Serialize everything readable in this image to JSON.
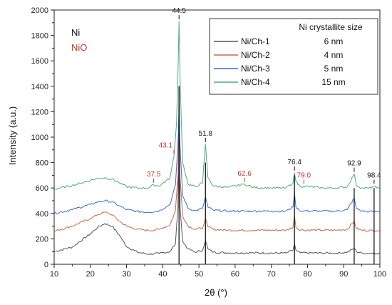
{
  "chart_data": {
    "type": "line",
    "xlabel": "2θ (°)",
    "ylabel": "Intensity (a.u.)",
    "xlim": [
      10,
      100
    ],
    "ylim": [
      0,
      2000
    ],
    "x_ticks": [
      10,
      20,
      30,
      40,
      50,
      60,
      70,
      80,
      90,
      100
    ],
    "y_ticks": [
      0,
      200,
      400,
      600,
      800,
      1000,
      1200,
      1400,
      1600,
      1800,
      2000
    ],
    "grid": false,
    "phase_labels": [
      {
        "text": "Ni",
        "color": "#111111"
      },
      {
        "text": "NiO",
        "color": "#c0392b"
      }
    ],
    "legend": {
      "placement": "top-right",
      "header": "Ni crystallite size",
      "entries": [
        {
          "name": "Ni/Ch-1",
          "value": "6 nm",
          "color": "#555555"
        },
        {
          "name": "Ni/Ch-2",
          "value": "4 nm",
          "color": "#d0654f"
        },
        {
          "name": "Ni/Ch-3",
          "value": "5 nm",
          "color": "#3a6fd8"
        },
        {
          "name": "Ni/Ch-4",
          "value": "15 nm",
          "color": "#4caf74"
        }
      ]
    },
    "series": [
      {
        "name": "Ni/Ch-1",
        "color": "#555555",
        "x": [
          10,
          15,
          20,
          22,
          24,
          26,
          28,
          30,
          33,
          36,
          39,
          42,
          43.5,
          44.2,
          44.5,
          44.8,
          45.5,
          47,
          49,
          51,
          51.8,
          52.5,
          54,
          58,
          65,
          70,
          74,
          76,
          76.4,
          76.8,
          78,
          84,
          88,
          91,
          92.9,
          93.5,
          95,
          97,
          98.4,
          99,
          100
        ],
        "y": [
          100,
          135,
          240,
          290,
          320,
          300,
          230,
          140,
          95,
          80,
          85,
          100,
          160,
          450,
          1400,
          450,
          180,
          120,
          95,
          110,
          185,
          120,
          95,
          90,
          90,
          88,
          88,
          110,
          160,
          110,
          90,
          88,
          88,
          95,
          125,
          100,
          88,
          86,
          90,
          85,
          85
        ]
      },
      {
        "name": "Ni/Ch-2",
        "color": "#d0654f",
        "x": [
          10,
          15,
          20,
          22,
          24,
          26,
          28,
          30,
          33,
          36,
          39,
          42,
          43.5,
          44.2,
          44.5,
          44.8,
          45.5,
          47,
          49,
          51,
          51.8,
          52.5,
          54,
          58,
          65,
          70,
          74,
          76,
          76.4,
          76.8,
          78,
          84,
          88,
          91,
          92.9,
          93.5,
          95,
          97,
          99,
          100
        ],
        "y": [
          260,
          300,
          360,
          390,
          410,
          390,
          340,
          300,
          275,
          265,
          275,
          310,
          420,
          700,
          1080,
          680,
          380,
          300,
          275,
          285,
          360,
          295,
          275,
          268,
          268,
          268,
          268,
          290,
          380,
          290,
          270,
          268,
          268,
          275,
          340,
          282,
          268,
          265,
          265,
          265
        ]
      },
      {
        "name": "Ni/Ch-3",
        "color": "#3a6fd8",
        "x": [
          10,
          15,
          20,
          22,
          24,
          26,
          28,
          30,
          33,
          36,
          39,
          42,
          43.5,
          44.2,
          44.5,
          44.8,
          45.5,
          47,
          49,
          51,
          51.8,
          52.5,
          54,
          58,
          65,
          70,
          74,
          76,
          76.4,
          76.8,
          78,
          84,
          88,
          91,
          92.9,
          93.5,
          95,
          97,
          99,
          100
        ],
        "y": [
          400,
          430,
          470,
          490,
          500,
          490,
          460,
          430,
          415,
          410,
          420,
          470,
          620,
          950,
          1210,
          920,
          540,
          440,
          420,
          440,
          530,
          450,
          425,
          418,
          418,
          418,
          418,
          450,
          560,
          450,
          420,
          418,
          418,
          430,
          520,
          440,
          418,
          415,
          415,
          415
        ]
      },
      {
        "name": "Ni/Ch-4",
        "color": "#4caf74",
        "x": [
          10,
          15,
          20,
          22,
          24,
          26,
          28,
          30,
          33,
          36,
          37.5,
          39,
          42,
          43.1,
          43.8,
          44.2,
          44.5,
          44.8,
          45.5,
          47,
          49,
          51,
          51.8,
          52.5,
          54,
          58,
          62.6,
          65,
          70,
          74,
          76,
          76.4,
          76.8,
          78,
          79,
          84,
          88,
          91,
          92.9,
          93.5,
          95,
          97,
          98.4,
          99,
          100
        ],
        "y": [
          590,
          620,
          660,
          675,
          680,
          670,
          640,
          610,
          600,
          600,
          625,
          615,
          680,
          850,
          1100,
          1500,
          1910,
          1450,
          800,
          630,
          610,
          640,
          945,
          680,
          615,
          605,
          630,
          605,
          600,
          600,
          640,
          720,
          650,
          610,
          615,
          600,
          600,
          610,
          710,
          620,
          600,
          598,
          615,
          600,
          598
        ]
      }
    ],
    "annotations": [
      {
        "text": "44.5",
        "x": 44.5,
        "y": 1910,
        "color": "#111111"
      },
      {
        "text": "51.8",
        "x": 51.8,
        "y": 945,
        "color": "#111111"
      },
      {
        "text": "76.4",
        "x": 76.4,
        "y": 720,
        "color": "#111111"
      },
      {
        "text": "92.9",
        "x": 92.9,
        "y": 710,
        "color": "#111111"
      },
      {
        "text": "98.4",
        "x": 98.4,
        "y": 615,
        "color": "#111111"
      },
      {
        "text": "43.1",
        "x": 43.1,
        "y": 850,
        "color": "#c0392b"
      },
      {
        "text": "37.5",
        "x": 37.5,
        "y": 625,
        "color": "#c0392b"
      },
      {
        "text": "62.6",
        "x": 62.6,
        "y": 630,
        "color": "#c0392b"
      },
      {
        "text": "79.0",
        "x": 79.0,
        "y": 615,
        "color": "#c0392b"
      }
    ]
  }
}
